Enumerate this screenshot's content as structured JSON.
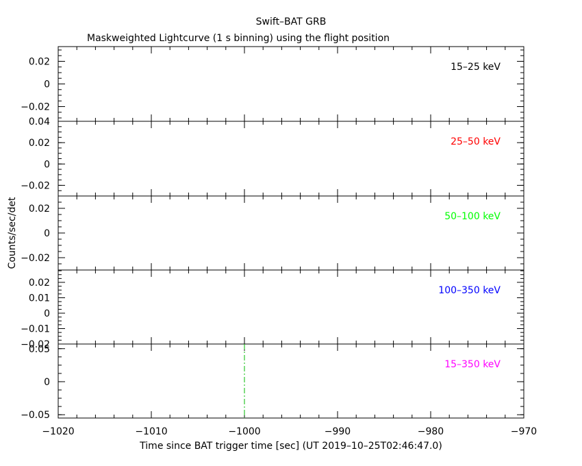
{
  "title": "Swift–BAT GRB",
  "subtitle": "Maskweighted Lightcurve (1 s binning) using the flight position",
  "chart_data": {
    "type": "line",
    "xlabel": "Time since BAT trigger time [sec] (UT 2019–10–25T02:46:47.0)",
    "ylabel": "Counts/sec/det",
    "xlim": [
      -1020,
      -970
    ],
    "x_ticks": [
      -1020,
      -1010,
      -1000,
      -990,
      -980,
      -970
    ],
    "x_tick_labels": [
      "−1020",
      "−1010",
      "−1000",
      "−990",
      "−980",
      "−970"
    ],
    "trigger_marker": {
      "x": -1000,
      "color": "#00bb00",
      "panel": "15–350 keV"
    },
    "panels": [
      {
        "band": "15–25 keV",
        "color": "#000000",
        "ylim": [
          -0.033,
          0.033
        ],
        "y_ticks": [
          -0.02,
          0,
          0.02
        ],
        "y_tick_labels": [
          "−0.02",
          "0",
          "0.02"
        ],
        "values": []
      },
      {
        "band": "25–50 keV",
        "color": "#ff0000",
        "ylim": [
          -0.03,
          0.04
        ],
        "y_ticks": [
          -0.02,
          0,
          0.02,
          0.04
        ],
        "y_tick_labels": [
          "−0.02",
          "0",
          "0.02",
          "0.04"
        ],
        "values": []
      },
      {
        "band": "50–100 keV",
        "color": "#00ff00",
        "ylim": [
          -0.03,
          0.03
        ],
        "y_ticks": [
          -0.02,
          0,
          0.02
        ],
        "y_tick_labels": [
          "−0.02",
          "0",
          "0.02"
        ],
        "values": []
      },
      {
        "band": "100–350 keV",
        "color": "#0000ff",
        "ylim": [
          -0.02,
          0.028
        ],
        "y_ticks": [
          -0.02,
          -0.01,
          0,
          0.01,
          0.02
        ],
        "y_tick_labels": [
          "−0.02",
          "−0.01",
          "0",
          "0.01",
          "0.02"
        ],
        "values": []
      },
      {
        "band": "15–350 keV",
        "color": "#ff00ff",
        "ylim": [
          -0.055,
          0.057
        ],
        "y_ticks": [
          -0.05,
          0,
          0.05
        ],
        "y_tick_labels": [
          "−0.05",
          "0",
          "0.05"
        ],
        "values": []
      }
    ]
  }
}
